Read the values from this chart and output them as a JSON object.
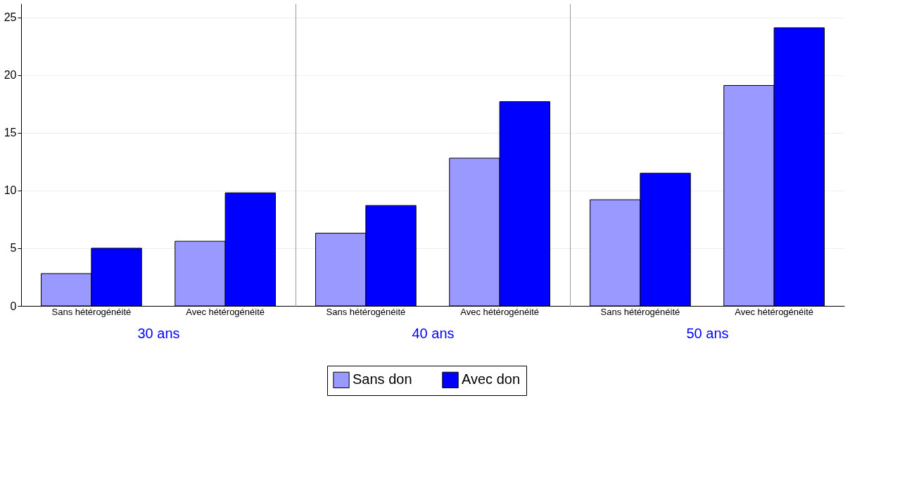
{
  "chart_data": [
    {
      "type": "bar",
      "xlabel": "30 ans",
      "categories": [
        "Sans hétérogénéité",
        "Avec hétérogénéité"
      ],
      "ylim": [
        0,
        26.2
      ],
      "yticks": [
        0,
        5,
        10,
        15,
        20,
        25
      ],
      "grid": "y",
      "legend": "bottom",
      "series": [
        {
          "name": "Sans don",
          "color": "#9999ff",
          "values": [
            2.8,
            5.6
          ]
        },
        {
          "name": "Avec don",
          "color": "#0000ff",
          "values": [
            5.0,
            9.8
          ]
        }
      ]
    },
    {
      "type": "bar",
      "xlabel": "40 ans",
      "categories": [
        "Sans hétérogénéité",
        "Avec hétérogénéité"
      ],
      "ylim": [
        0,
        26.2
      ],
      "yticks": [
        0,
        5,
        10,
        15,
        20,
        25
      ],
      "grid": "y",
      "legend": "bottom",
      "tick_labels": "x",
      "series": [
        {
          "name": "Sans don",
          "color": "#9999ff",
          "values": [
            6.3,
            12.8
          ]
        },
        {
          "name": "Avec don",
          "color": "#0000ff",
          "values": [
            8.7,
            17.7
          ]
        }
      ]
    },
    {
      "type": "bar",
      "xlabel": "50 ans",
      "categories": [
        "Sans hétérogénéité",
        "Avec hétérogénéité"
      ],
      "ylim": [
        0,
        26.2
      ],
      "yticks": [
        0,
        5,
        10,
        15,
        20,
        25
      ],
      "grid": "y",
      "legend": "bottom",
      "tick_labels": "x",
      "series": [
        {
          "name": "Sans don",
          "color": "#9999ff",
          "values": [
            9.2,
            19.1
          ]
        },
        {
          "name": "Avec don",
          "color": "#0000ff",
          "values": [
            11.5,
            24.1
          ]
        }
      ]
    }
  ]
}
